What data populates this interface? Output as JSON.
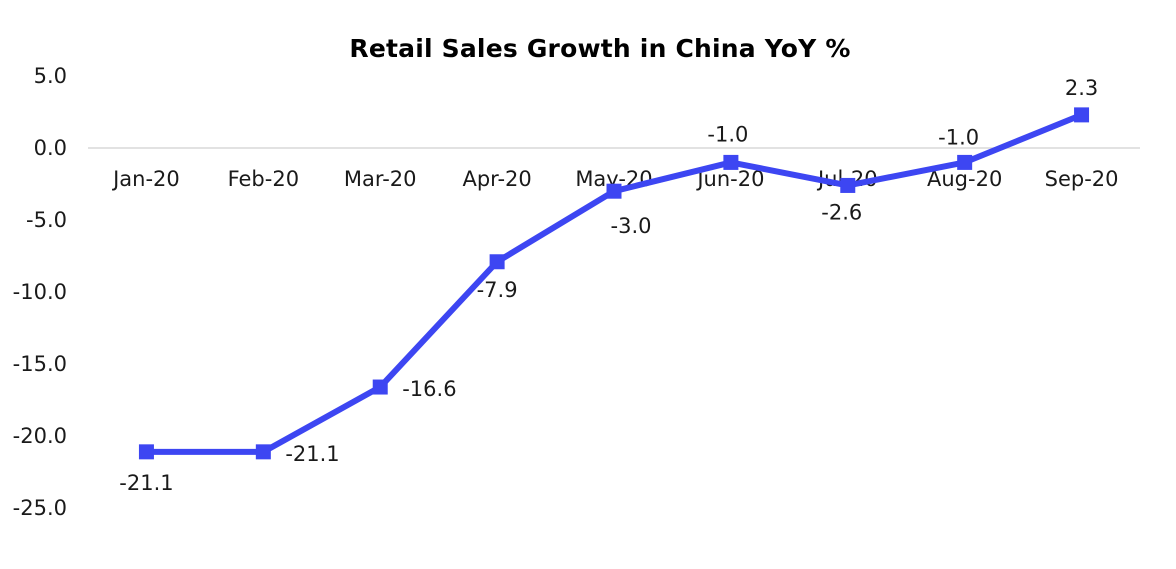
{
  "chart_data": {
    "type": "line",
    "title": "Retail Sales Growth in China YoY %",
    "xlabel": "",
    "ylabel": "",
    "categories": [
      "Jan-20",
      "Feb-20",
      "Mar-20",
      "Apr-20",
      "May-20",
      "Jun-20",
      "Jul-20",
      "Aug-20",
      "Sep-20"
    ],
    "series": [
      {
        "values": [
          -21.1,
          -21.1,
          -16.6,
          -7.9,
          -3.0,
          -1.0,
          -2.6,
          -1.0,
          2.3
        ],
        "data_labels": [
          "-21.1",
          "-21.1",
          "-16.6",
          "-7.9",
          "-3.0",
          "-1.0",
          "-2.6",
          "-1.0",
          "2.3"
        ],
        "color": "#3d46f2",
        "marker": "square"
      }
    ],
    "ylim": [
      -25,
      5
    ],
    "yticks": [
      5,
      0,
      -5,
      -10,
      -15,
      -20,
      -25
    ],
    "ytick_labels": [
      "5.0",
      "0.0",
      "-5.0",
      "-10.0",
      "-15.0",
      "-20.0",
      "-25.0"
    ],
    "grid": false,
    "legend": "none",
    "baseline_color": "#d9d9d9"
  }
}
